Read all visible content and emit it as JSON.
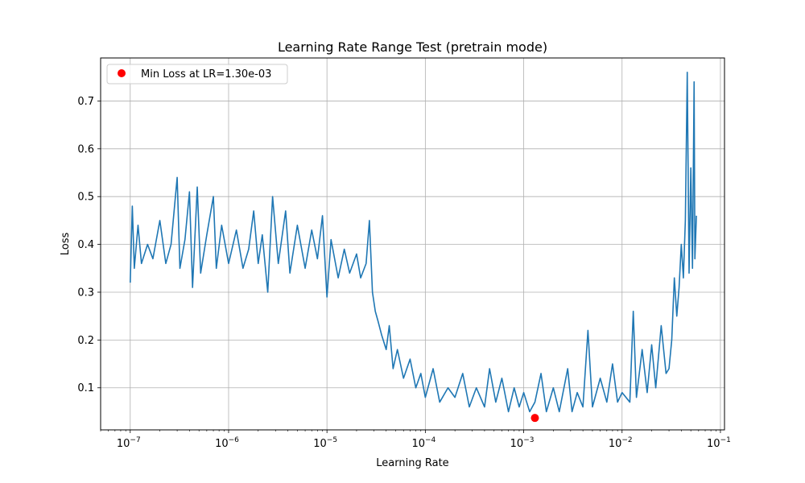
{
  "chart_data": {
    "type": "line",
    "title": "Learning Rate Range Test (pretrain mode)",
    "xlabel": "Learning Rate",
    "ylabel": "Loss",
    "xscale": "log",
    "xlim": [
      5e-08,
      0.11
    ],
    "ylim": [
      0.012,
      0.79
    ],
    "grid": true,
    "legend_position": "top-left",
    "x_tick_values": [
      1e-07,
      1e-06,
      1e-05,
      0.0001,
      0.001,
      0.01,
      0.1
    ],
    "x_tick_labels": [
      {
        "base": "10",
        "exp": "−7"
      },
      {
        "base": "10",
        "exp": "−6"
      },
      {
        "base": "10",
        "exp": "−5"
      },
      {
        "base": "10",
        "exp": "−4"
      },
      {
        "base": "10",
        "exp": "−3"
      },
      {
        "base": "10",
        "exp": "−2"
      },
      {
        "base": "10",
        "exp": "−1"
      }
    ],
    "y_ticks": [
      0.1,
      0.2,
      0.3,
      0.4,
      0.5,
      0.6,
      0.7
    ],
    "y_tick_labels": [
      "0.1",
      "0.2",
      "0.3",
      "0.4",
      "0.5",
      "0.6",
      "0.7"
    ],
    "series": [
      {
        "color": "#1f77b4",
        "x_range": [
          1e-07,
          0.057
        ],
        "points": [
          [
            1e-07,
            0.32
          ],
          [
            1.05e-07,
            0.48
          ],
          [
            1.1e-07,
            0.35
          ],
          [
            1.2e-07,
            0.44
          ],
          [
            1.3e-07,
            0.36
          ],
          [
            1.5e-07,
            0.4
          ],
          [
            1.7e-07,
            0.37
          ],
          [
            2e-07,
            0.45
          ],
          [
            2.3e-07,
            0.36
          ],
          [
            2.6e-07,
            0.4
          ],
          [
            3e-07,
            0.54
          ],
          [
            3.2e-07,
            0.35
          ],
          [
            3.6e-07,
            0.41
          ],
          [
            4e-07,
            0.51
          ],
          [
            4.3e-07,
            0.31
          ],
          [
            4.8e-07,
            0.52
          ],
          [
            5.2e-07,
            0.34
          ],
          [
            6e-07,
            0.42
          ],
          [
            7e-07,
            0.5
          ],
          [
            7.5e-07,
            0.35
          ],
          [
            8.5e-07,
            0.44
          ],
          [
            1e-06,
            0.36
          ],
          [
            1.2e-06,
            0.43
          ],
          [
            1.4e-06,
            0.35
          ],
          [
            1.6e-06,
            0.39
          ],
          [
            1.8e-06,
            0.47
          ],
          [
            2e-06,
            0.36
          ],
          [
            2.2e-06,
            0.42
          ],
          [
            2.5e-06,
            0.3
          ],
          [
            2.8e-06,
            0.5
          ],
          [
            3.2e-06,
            0.36
          ],
          [
            3.8e-06,
            0.47
          ],
          [
            4.2e-06,
            0.34
          ],
          [
            5e-06,
            0.44
          ],
          [
            6e-06,
            0.35
          ],
          [
            7e-06,
            0.43
          ],
          [
            8e-06,
            0.37
          ],
          [
            9e-06,
            0.46
          ],
          [
            1e-05,
            0.29
          ],
          [
            1.1e-05,
            0.41
          ],
          [
            1.3e-05,
            0.33
          ],
          [
            1.5e-05,
            0.39
          ],
          [
            1.7e-05,
            0.34
          ],
          [
            2e-05,
            0.38
          ],
          [
            2.2e-05,
            0.33
          ],
          [
            2.5e-05,
            0.36
          ],
          [
            2.7e-05,
            0.45
          ],
          [
            2.9e-05,
            0.3
          ],
          [
            3.1e-05,
            0.26
          ],
          [
            3.3e-05,
            0.24
          ],
          [
            3.6e-05,
            0.21
          ],
          [
            4e-05,
            0.18
          ],
          [
            4.3e-05,
            0.23
          ],
          [
            4.7e-05,
            0.14
          ],
          [
            5.2e-05,
            0.18
          ],
          [
            6e-05,
            0.12
          ],
          [
            7e-05,
            0.16
          ],
          [
            8e-05,
            0.1
          ],
          [
            9e-05,
            0.13
          ],
          [
            0.0001,
            0.08
          ],
          [
            0.00012,
            0.14
          ],
          [
            0.00014,
            0.07
          ],
          [
            0.00017,
            0.1
          ],
          [
            0.0002,
            0.08
          ],
          [
            0.00024,
            0.13
          ],
          [
            0.00028,
            0.06
          ],
          [
            0.00033,
            0.1
          ],
          [
            0.0004,
            0.06
          ],
          [
            0.00045,
            0.14
          ],
          [
            0.00052,
            0.07
          ],
          [
            0.0006,
            0.12
          ],
          [
            0.0007,
            0.05
          ],
          [
            0.0008,
            0.1
          ],
          [
            0.0009,
            0.06
          ],
          [
            0.001,
            0.09
          ],
          [
            0.00115,
            0.05
          ],
          [
            0.0013,
            0.07
          ],
          [
            0.0015,
            0.13
          ],
          [
            0.0017,
            0.05
          ],
          [
            0.002,
            0.1
          ],
          [
            0.0023,
            0.05
          ],
          [
            0.0028,
            0.14
          ],
          [
            0.0031,
            0.05
          ],
          [
            0.0035,
            0.09
          ],
          [
            0.004,
            0.06
          ],
          [
            0.0045,
            0.22
          ],
          [
            0.005,
            0.06
          ],
          [
            0.006,
            0.12
          ],
          [
            0.007,
            0.07
          ],
          [
            0.008,
            0.15
          ],
          [
            0.009,
            0.07
          ],
          [
            0.01,
            0.09
          ],
          [
            0.012,
            0.07
          ],
          [
            0.013,
            0.26
          ],
          [
            0.014,
            0.08
          ],
          [
            0.016,
            0.18
          ],
          [
            0.018,
            0.09
          ],
          [
            0.02,
            0.19
          ],
          [
            0.022,
            0.1
          ],
          [
            0.025,
            0.23
          ],
          [
            0.028,
            0.13
          ],
          [
            0.03,
            0.14
          ],
          [
            0.032,
            0.2
          ],
          [
            0.034,
            0.33
          ],
          [
            0.036,
            0.25
          ],
          [
            0.038,
            0.31
          ],
          [
            0.04,
            0.4
          ],
          [
            0.042,
            0.33
          ],
          [
            0.044,
            0.45
          ],
          [
            0.046,
            0.76
          ],
          [
            0.048,
            0.34
          ],
          [
            0.05,
            0.56
          ],
          [
            0.052,
            0.35
          ],
          [
            0.054,
            0.74
          ],
          [
            0.055,
            0.37
          ],
          [
            0.057,
            0.46
          ]
        ]
      }
    ],
    "marker": {
      "name": "Min Loss at LR=1.30e-03",
      "x": 0.0013,
      "y": 0.037,
      "color": "#ff0000"
    }
  }
}
